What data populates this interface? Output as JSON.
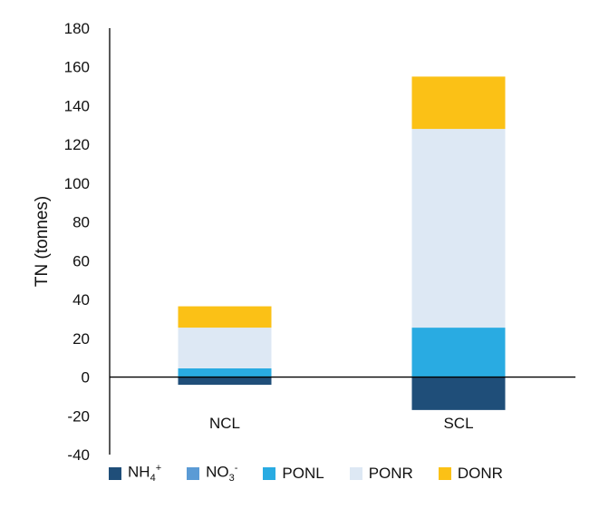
{
  "chart_data": {
    "type": "bar",
    "stacked": true,
    "categories": [
      "NCL",
      "SCL"
    ],
    "ylabel": "TN (tonnes)",
    "xlabel": "",
    "title": "",
    "ylim": [
      -40,
      180
    ],
    "yticks": [
      -40,
      -20,
      0,
      20,
      40,
      60,
      80,
      100,
      120,
      140,
      160,
      180
    ],
    "grid": false,
    "legend_position": "bottom",
    "series": [
      {
        "name": "NH4+",
        "display": {
          "base": "NH",
          "sub": "4",
          "sup": "+"
        },
        "color": "#1f4e79",
        "values": [
          -4,
          -17
        ]
      },
      {
        "name": "NO3-",
        "display": {
          "base": "NO",
          "sub": "3",
          "sup": "-"
        },
        "color": "#5b9bd5",
        "values": [
          0,
          0
        ]
      },
      {
        "name": "PONL",
        "display": {
          "base": "PONL",
          "sub": "",
          "sup": ""
        },
        "color": "#29abe2",
        "values": [
          4.5,
          25.5
        ]
      },
      {
        "name": "PONR",
        "display": {
          "base": "PONR",
          "sub": "",
          "sup": ""
        },
        "color": "#dde8f4",
        "values": [
          21,
          102.5
        ]
      },
      {
        "name": "DONR",
        "display": {
          "base": "DONR",
          "sub": "",
          "sup": ""
        },
        "color": "#fbc116",
        "values": [
          11,
          27
        ]
      }
    ]
  }
}
